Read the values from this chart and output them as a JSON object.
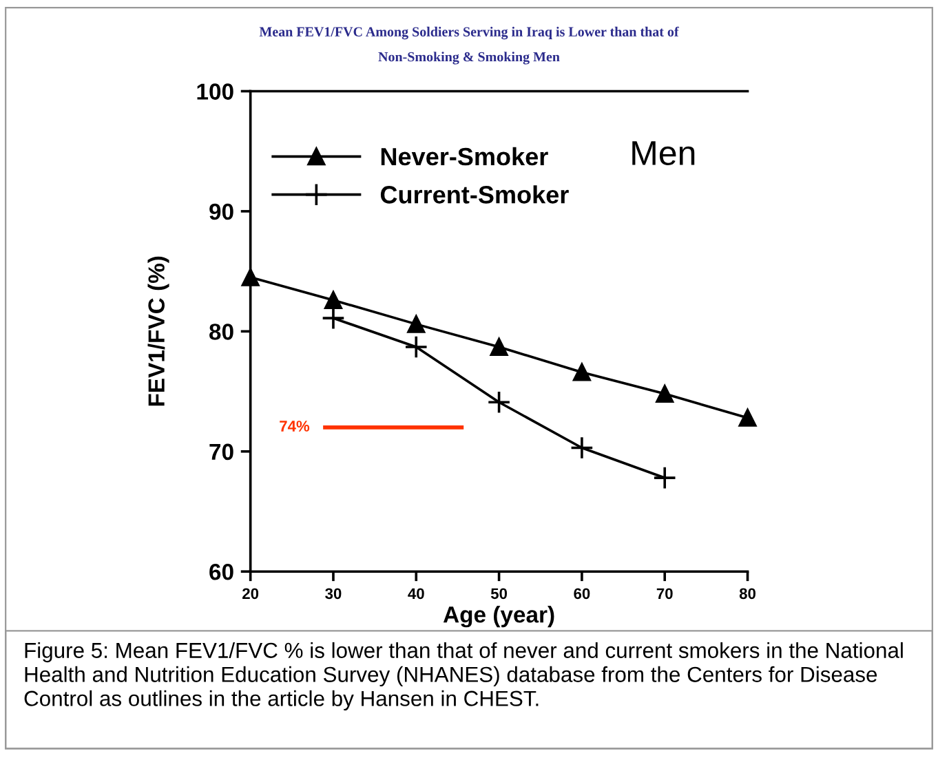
{
  "chart_data": {
    "type": "line",
    "title": "Mean FEV1/FVC Among Soldiers Serving in Iraq is Lower than that of\nNon-Smoking & Smoking Men",
    "xlabel": "Age (year)",
    "ylabel": "FEV1/FVC (%)",
    "xlim": [
      20,
      80
    ],
    "xticks": [
      20,
      30,
      40,
      50,
      60,
      70,
      80
    ],
    "ylim": [
      60,
      100
    ],
    "yticks": [
      60,
      70,
      80,
      90,
      100
    ],
    "grid": false,
    "legend": "top left",
    "series": [
      {
        "name": "Never-Smoker",
        "color": "#000000",
        "marker": "triangle",
        "x": [
          20,
          30,
          40,
          50,
          60,
          70,
          80
        ],
        "values": [
          84.5,
          82.6,
          80.6,
          78.7,
          76.6,
          74.8,
          72.8
        ]
      },
      {
        "name": "Current-Smoker",
        "color": "#000000",
        "marker": "cross",
        "x": [
          30,
          40,
          50,
          60,
          70
        ],
        "values": [
          81.1,
          78.7,
          74.1,
          70.3,
          67.8
        ]
      },
      {
        "color": "#ff3300",
        "marker": "none",
        "x": [
          29,
          45.5
        ],
        "values": [
          72,
          72
        ]
      }
    ],
    "annotations": [
      {
        "text": "74%",
        "x": 29,
        "y": 72
      },
      "Men",
      "Figure 5: Mean FEV1/FVC % is lower than that of never and current smokers in the National Health and Nutrition Education Survey (NHANES) database from the Centers for Disease Control as outlines in the article by Hansen in CHEST."
    ]
  }
}
